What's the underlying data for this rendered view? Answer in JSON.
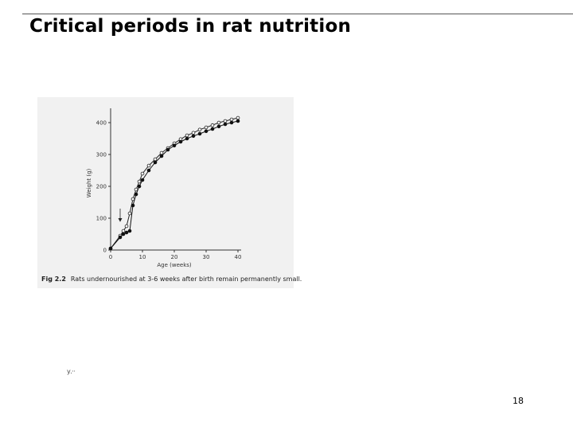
{
  "slide": {
    "title": "Critical periods in rat nutrition",
    "stray_mark": "у.··",
    "page_number": "18"
  },
  "figure": {
    "caption_label": "Fig 2.2",
    "caption_text": "Rats undernourished at 3-6 weeks after birth remain permanently small."
  },
  "chart_data": {
    "type": "line",
    "xlabel": "Age (weeks)",
    "ylabel": "Weight (g)",
    "xlim": [
      0,
      40
    ],
    "ylim": [
      0,
      420
    ],
    "xticks": [
      0,
      10,
      20,
      30,
      40
    ],
    "yticks": [
      0,
      100,
      200,
      300,
      400
    ],
    "grid": false,
    "arrow_at_x": 3,
    "series": [
      {
        "marker": "open-circle",
        "color": "#222222",
        "points": [
          [
            0,
            5
          ],
          [
            3,
            45
          ],
          [
            4,
            60
          ],
          [
            5,
            75
          ],
          [
            6,
            115
          ],
          [
            7,
            160
          ],
          [
            8,
            190
          ],
          [
            9,
            215
          ],
          [
            10,
            240
          ],
          [
            12,
            265
          ],
          [
            14,
            285
          ],
          [
            16,
            305
          ],
          [
            18,
            320
          ],
          [
            20,
            335
          ],
          [
            22,
            348
          ],
          [
            24,
            360
          ],
          [
            26,
            368
          ],
          [
            28,
            378
          ],
          [
            30,
            385
          ],
          [
            32,
            392
          ],
          [
            34,
            400
          ],
          [
            36,
            405
          ],
          [
            38,
            410
          ],
          [
            40,
            415
          ]
        ]
      },
      {
        "marker": "filled-circle",
        "color": "#111111",
        "points": [
          [
            0,
            5
          ],
          [
            3,
            40
          ],
          [
            4,
            50
          ],
          [
            5,
            55
          ],
          [
            6,
            60
          ],
          [
            7,
            140
          ],
          [
            8,
            175
          ],
          [
            9,
            200
          ],
          [
            10,
            220
          ],
          [
            12,
            250
          ],
          [
            14,
            275
          ],
          [
            16,
            295
          ],
          [
            18,
            315
          ],
          [
            20,
            328
          ],
          [
            22,
            340
          ],
          [
            24,
            350
          ],
          [
            26,
            358
          ],
          [
            28,
            365
          ],
          [
            30,
            373
          ],
          [
            32,
            380
          ],
          [
            34,
            388
          ],
          [
            36,
            395
          ],
          [
            38,
            400
          ],
          [
            40,
            405
          ]
        ]
      }
    ]
  }
}
